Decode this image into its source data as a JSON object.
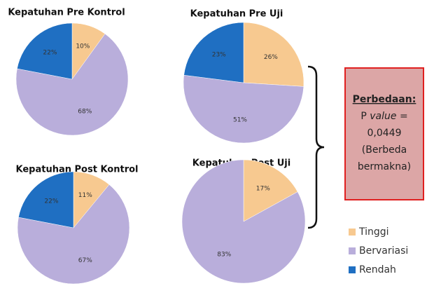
{
  "chart_data": [
    {
      "type": "pie",
      "title": "Kepatuhan Pre Kontrol",
      "categories": [
        "Tinggi",
        "Bervariasi",
        "Rendah"
      ],
      "values": [
        10,
        68,
        22
      ],
      "value_labels": [
        "10%",
        "68%",
        "22%"
      ],
      "colors": [
        "#f7c990",
        "#b9aedb",
        "#1f6fc2"
      ]
    },
    {
      "type": "pie",
      "title": "Kepatuhan Pre Uji",
      "categories": [
        "Tinggi",
        "Bervariasi",
        "Rendah"
      ],
      "values": [
        26,
        51,
        23
      ],
      "value_labels": [
        "26%",
        "51%",
        "23%"
      ],
      "colors": [
        "#f7c990",
        "#b9aedb",
        "#1f6fc2"
      ]
    },
    {
      "type": "pie",
      "title": "Kepatuhan Post Kontrol",
      "categories": [
        "Tinggi",
        "Bervariasi",
        "Rendah"
      ],
      "values": [
        11,
        67,
        22
      ],
      "value_labels": [
        "11%",
        "67%",
        "22%"
      ],
      "colors": [
        "#f7c990",
        "#b9aedb",
        "#1f6fc2"
      ]
    },
    {
      "type": "pie",
      "title": "Kepatuhan Post Uji",
      "categories": [
        "Tinggi",
        "Bervariasi",
        "Rendah"
      ],
      "values": [
        17,
        83,
        0
      ],
      "value_labels": [
        "17%",
        "83%",
        null
      ],
      "colors": [
        "#f7c990",
        "#b9aedb",
        "#1f6fc2"
      ]
    }
  ],
  "annotation": {
    "title": "Perbedaan:",
    "p": "P",
    "p_word": "value",
    "eq": "=",
    "lines": [
      "0,0449",
      "(Berbeda",
      "bermakna)"
    ]
  }
}
